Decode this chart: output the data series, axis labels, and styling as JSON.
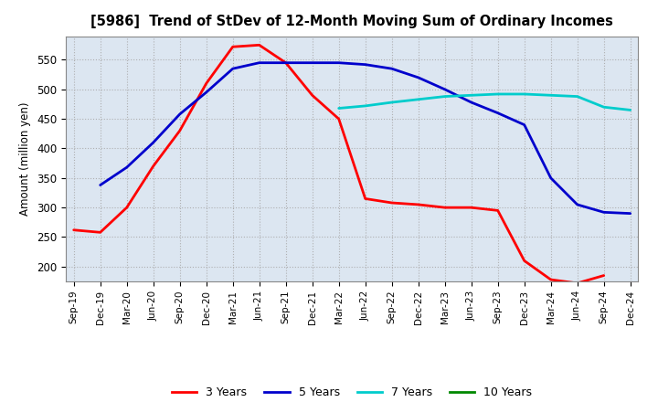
{
  "title": "[5986]  Trend of StDev of 12-Month Moving Sum of Ordinary Incomes",
  "ylabel": "Amount (million yen)",
  "background_color": "#ffffff",
  "plot_bg_color": "#dce6f1",
  "grid_color": "#aaaaaa",
  "x_labels": [
    "Sep-19",
    "Dec-19",
    "Mar-20",
    "Jun-20",
    "Sep-20",
    "Dec-20",
    "Mar-21",
    "Jun-21",
    "Sep-21",
    "Dec-21",
    "Mar-22",
    "Jun-22",
    "Sep-22",
    "Dec-22",
    "Mar-23",
    "Jun-23",
    "Sep-23",
    "Dec-23",
    "Mar-24",
    "Jun-24",
    "Sep-24",
    "Dec-24"
  ],
  "ylim": [
    175,
    590
  ],
  "yticks": [
    200,
    250,
    300,
    350,
    400,
    450,
    500,
    550
  ],
  "series": {
    "3 Years": {
      "color": "#ff0000",
      "data_x": [
        0,
        1,
        2,
        3,
        4,
        5,
        6,
        7,
        8,
        9,
        10,
        11,
        12,
        13,
        14,
        15,
        16,
        17,
        18,
        19,
        20
      ],
      "data_y": [
        262,
        258,
        300,
        370,
        430,
        510,
        572,
        575,
        545,
        490,
        450,
        315,
        308,
        305,
        300,
        300,
        295,
        210,
        178,
        172,
        185
      ]
    },
    "5 Years": {
      "color": "#0000cc",
      "data_x": [
        1,
        2,
        3,
        4,
        5,
        6,
        7,
        8,
        9,
        10,
        11,
        12,
        13,
        14,
        15,
        16,
        17,
        18,
        19,
        20,
        21
      ],
      "data_y": [
        338,
        368,
        410,
        458,
        495,
        535,
        545,
        545,
        545,
        545,
        542,
        535,
        520,
        500,
        478,
        460,
        440,
        350,
        305,
        292,
        290
      ]
    },
    "7 Years": {
      "color": "#00cccc",
      "data_x": [
        10,
        11,
        12,
        13,
        14,
        15,
        16,
        17,
        18,
        19,
        20,
        21
      ],
      "data_y": [
        468,
        472,
        478,
        483,
        488,
        490,
        492,
        492,
        490,
        488,
        470,
        465
      ]
    },
    "10 Years": {
      "color": "#008800",
      "data_x": [],
      "data_y": []
    }
  },
  "legend_labels": [
    "3 Years",
    "5 Years",
    "7 Years",
    "10 Years"
  ],
  "legend_colors": [
    "#ff0000",
    "#0000cc",
    "#00cccc",
    "#008800"
  ]
}
